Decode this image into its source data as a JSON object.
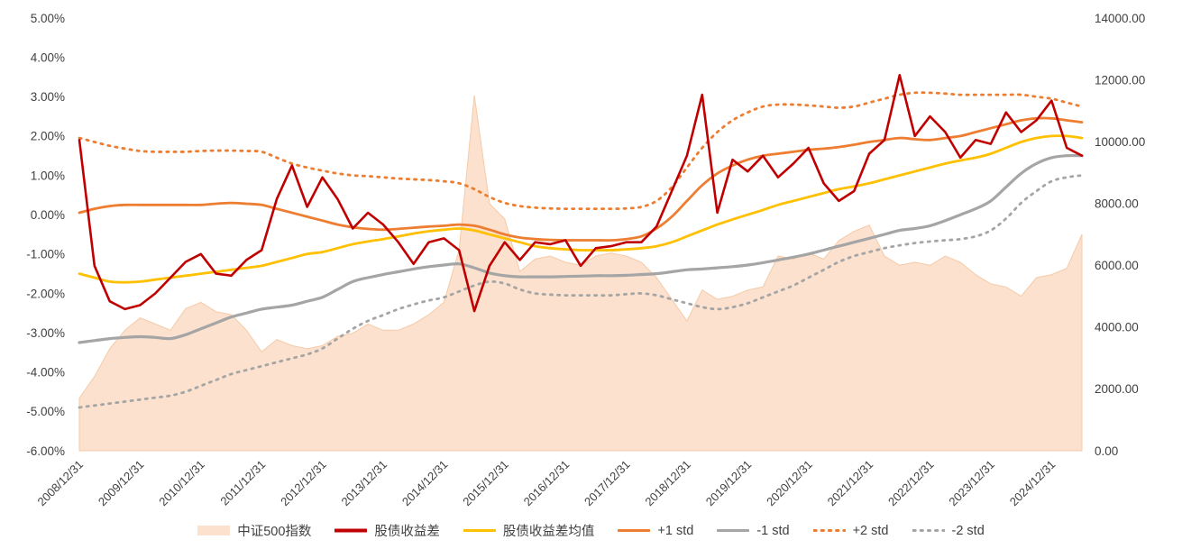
{
  "chart_data": {
    "type": "line",
    "title": "",
    "legend_position": "bottom",
    "grid": false,
    "axes": {
      "left": {
        "unit": "%",
        "min": -6,
        "max": 5,
        "tick_labels": [
          "5.00%",
          "4.00%",
          "3.00%",
          "2.00%",
          "1.00%",
          "0.00%",
          "-1.00%",
          "-2.00%",
          "-3.00%",
          "-4.00%",
          "-5.00%",
          "-6.00%"
        ],
        "tick_values": [
          5,
          4,
          3,
          2,
          1,
          0,
          -1,
          -2,
          -3,
          -4,
          -5,
          -6
        ]
      },
      "right": {
        "unit": "index points",
        "min": 0,
        "max": 14000,
        "tick_labels": [
          "14000.00",
          "12000.00",
          "10000.00",
          "8000.00",
          "6000.00",
          "4000.00",
          "2000.00",
          "0.00"
        ],
        "tick_values": [
          14000,
          12000,
          10000,
          8000,
          6000,
          4000,
          2000,
          0
        ]
      },
      "x": {
        "tick_labels": [
          "2008/12/31",
          "2009/12/31",
          "2010/12/31",
          "2011/12/31",
          "2012/12/31",
          "2013/12/31",
          "2014/12/31",
          "2015/12/31",
          "2016/12/31",
          "2017/12/31",
          "2018/12/31",
          "2019/12/31",
          "2020/12/31",
          "2021/12/31",
          "2022/12/31",
          "2023/12/31",
          "2024/12/31"
        ],
        "tick_values": [
          2009,
          2010,
          2011,
          2012,
          2013,
          2014,
          2015,
          2016,
          2017,
          2018,
          2019,
          2020,
          2021,
          2022,
          2023,
          2024,
          2025
        ]
      }
    },
    "x_years": [
      2009,
      2009.25,
      2009.5,
      2009.75,
      2010,
      2010.25,
      2010.5,
      2010.75,
      2011,
      2011.25,
      2011.5,
      2011.75,
      2012,
      2012.25,
      2012.5,
      2012.75,
      2013,
      2013.25,
      2013.5,
      2013.75,
      2014,
      2014.25,
      2014.5,
      2014.75,
      2015,
      2015.25,
      2015.5,
      2015.75,
      2016,
      2016.25,
      2016.5,
      2016.75,
      2017,
      2017.25,
      2017.5,
      2017.75,
      2018,
      2018.25,
      2018.5,
      2018.75,
      2019,
      2019.25,
      2019.5,
      2019.75,
      2020,
      2020.25,
      2020.5,
      2020.75,
      2021,
      2021.25,
      2021.5,
      2021.75,
      2022,
      2022.25,
      2022.5,
      2022.75,
      2023,
      2023.25,
      2023.5,
      2023.75,
      2024,
      2024.25,
      2024.5,
      2024.75,
      2025,
      2025.25,
      2025.5
    ],
    "series": [
      {
        "key": "csi500",
        "name": "中证500指数",
        "type": "area",
        "axis": "right",
        "color": "#FBE1CE",
        "edge": "#F5CBA8",
        "smooth": false,
        "values": [
          1700,
          2400,
          3300,
          3900,
          4300,
          4100,
          3900,
          4600,
          4800,
          4500,
          4400,
          3900,
          3200,
          3600,
          3400,
          3300,
          3400,
          3700,
          3800,
          4100,
          3900,
          3900,
          4100,
          4400,
          4800,
          6500,
          11500,
          8000,
          7500,
          5800,
          6200,
          6300,
          6100,
          6000,
          6300,
          6400,
          6300,
          6100,
          5600,
          4900,
          4200,
          5200,
          4900,
          5000,
          5200,
          5300,
          6300,
          6200,
          6400,
          6200,
          6800,
          7100,
          7300,
          6300,
          6000,
          6100,
          6000,
          6300,
          6100,
          5700,
          5400,
          5300,
          5000,
          5600,
          5700,
          5900,
          7000
        ]
      },
      {
        "key": "spread",
        "name": "股债收益差",
        "type": "line",
        "axis": "left",
        "color": "#C00000",
        "width": 2.6,
        "smooth": false,
        "values": [
          1.9,
          -1.3,
          -2.2,
          -2.4,
          -2.3,
          -2.0,
          -1.6,
          -1.2,
          -1.0,
          -1.5,
          -1.55,
          -1.15,
          -0.9,
          0.4,
          1.25,
          0.2,
          0.95,
          0.4,
          -0.35,
          0.05,
          -0.25,
          -0.7,
          -1.25,
          -0.7,
          -0.6,
          -0.9,
          -2.45,
          -1.3,
          -0.7,
          -1.15,
          -0.7,
          -0.75,
          -0.65,
          -1.3,
          -0.85,
          -0.8,
          -0.7,
          -0.7,
          -0.3,
          0.6,
          1.5,
          3.05,
          0.05,
          1.4,
          1.1,
          1.5,
          0.95,
          1.3,
          1.7,
          0.8,
          0.35,
          0.6,
          1.55,
          1.9,
          3.55,
          2.0,
          2.5,
          2.1,
          1.45,
          1.9,
          1.8,
          2.6,
          2.1,
          2.4,
          2.9,
          1.7,
          1.5
        ]
      },
      {
        "key": "spread-mean",
        "name": "股债收益差均值",
        "type": "line",
        "axis": "left",
        "color": "#FFC000",
        "width": 2.8,
        "smooth": true,
        "values": [
          -1.5,
          -1.6,
          -1.7,
          -1.72,
          -1.7,
          -1.65,
          -1.6,
          -1.55,
          -1.5,
          -1.45,
          -1.4,
          -1.35,
          -1.3,
          -1.2,
          -1.1,
          -1.0,
          -0.95,
          -0.85,
          -0.75,
          -0.68,
          -0.62,
          -0.55,
          -0.48,
          -0.42,
          -0.38,
          -0.35,
          -0.4,
          -0.5,
          -0.6,
          -0.7,
          -0.8,
          -0.85,
          -0.88,
          -0.9,
          -0.9,
          -0.9,
          -0.88,
          -0.85,
          -0.8,
          -0.7,
          -0.55,
          -0.4,
          -0.25,
          -0.12,
          0.0,
          0.12,
          0.25,
          0.35,
          0.45,
          0.55,
          0.65,
          0.72,
          0.8,
          0.9,
          1.0,
          1.1,
          1.2,
          1.3,
          1.38,
          1.45,
          1.55,
          1.7,
          1.85,
          1.95,
          2.0,
          2.0,
          1.95
        ]
      },
      {
        "key": "plus1std",
        "name": "+1 std",
        "type": "line",
        "axis": "left",
        "color": "#ED7D31",
        "width": 2.8,
        "smooth": true,
        "values": [
          0.05,
          0.15,
          0.22,
          0.25,
          0.25,
          0.25,
          0.25,
          0.25,
          0.25,
          0.28,
          0.3,
          0.28,
          0.25,
          0.15,
          0.05,
          -0.05,
          -0.15,
          -0.25,
          -0.32,
          -0.36,
          -0.38,
          -0.36,
          -0.33,
          -0.3,
          -0.28,
          -0.25,
          -0.28,
          -0.38,
          -0.5,
          -0.58,
          -0.62,
          -0.64,
          -0.65,
          -0.65,
          -0.65,
          -0.65,
          -0.62,
          -0.55,
          -0.35,
          -0.05,
          0.35,
          0.75,
          1.05,
          1.25,
          1.4,
          1.5,
          1.55,
          1.6,
          1.65,
          1.68,
          1.72,
          1.78,
          1.85,
          1.9,
          1.95,
          1.92,
          1.9,
          1.95,
          2.0,
          2.1,
          2.2,
          2.3,
          2.4,
          2.45,
          2.45,
          2.4,
          2.35
        ]
      },
      {
        "key": "minus1std",
        "name": "-1 std",
        "type": "line",
        "axis": "left",
        "color": "#A5A5A5",
        "width": 3.2,
        "smooth": true,
        "values": [
          -3.25,
          -3.2,
          -3.15,
          -3.12,
          -3.1,
          -3.12,
          -3.15,
          -3.05,
          -2.9,
          -2.75,
          -2.6,
          -2.5,
          -2.4,
          -2.35,
          -2.3,
          -2.2,
          -2.1,
          -1.9,
          -1.7,
          -1.6,
          -1.52,
          -1.45,
          -1.38,
          -1.32,
          -1.28,
          -1.25,
          -1.35,
          -1.48,
          -1.55,
          -1.58,
          -1.58,
          -1.58,
          -1.57,
          -1.56,
          -1.55,
          -1.55,
          -1.54,
          -1.52,
          -1.5,
          -1.45,
          -1.4,
          -1.38,
          -1.35,
          -1.32,
          -1.28,
          -1.22,
          -1.15,
          -1.08,
          -1.0,
          -0.9,
          -0.8,
          -0.7,
          -0.6,
          -0.5,
          -0.4,
          -0.35,
          -0.28,
          -0.15,
          0.0,
          0.15,
          0.35,
          0.7,
          1.05,
          1.3,
          1.45,
          1.5,
          1.5
        ]
      },
      {
        "key": "plus2std",
        "name": "+2 std",
        "type": "line",
        "axis": "left",
        "color": "#ED7D31",
        "width": 2.8,
        "dash": true,
        "smooth": true,
        "values": [
          1.95,
          1.85,
          1.75,
          1.68,
          1.62,
          1.6,
          1.6,
          1.6,
          1.62,
          1.63,
          1.63,
          1.62,
          1.6,
          1.45,
          1.3,
          1.2,
          1.12,
          1.05,
          1.0,
          0.98,
          0.95,
          0.92,
          0.9,
          0.88,
          0.85,
          0.8,
          0.65,
          0.45,
          0.3,
          0.22,
          0.18,
          0.16,
          0.15,
          0.15,
          0.15,
          0.15,
          0.16,
          0.2,
          0.35,
          0.7,
          1.2,
          1.7,
          2.1,
          2.4,
          2.6,
          2.75,
          2.8,
          2.8,
          2.78,
          2.75,
          2.72,
          2.75,
          2.85,
          2.95,
          3.05,
          3.1,
          3.1,
          3.08,
          3.05,
          3.05,
          3.05,
          3.05,
          3.05,
          3.0,
          2.95,
          2.85,
          2.75
        ]
      },
      {
        "key": "minus2std",
        "name": "-2 std",
        "type": "line",
        "axis": "left",
        "color": "#A5A5A5",
        "width": 2.8,
        "dash": true,
        "smooth": true,
        "values": [
          -4.9,
          -4.85,
          -4.8,
          -4.75,
          -4.7,
          -4.65,
          -4.6,
          -4.5,
          -4.35,
          -4.2,
          -4.05,
          -3.95,
          -3.85,
          -3.75,
          -3.65,
          -3.55,
          -3.4,
          -3.15,
          -2.9,
          -2.7,
          -2.55,
          -2.4,
          -2.28,
          -2.18,
          -2.1,
          -1.95,
          -1.8,
          -1.7,
          -1.75,
          -1.9,
          -2.0,
          -2.03,
          -2.05,
          -2.05,
          -2.05,
          -2.05,
          -2.02,
          -2.0,
          -2.05,
          -2.15,
          -2.25,
          -2.35,
          -2.4,
          -2.35,
          -2.25,
          -2.1,
          -1.95,
          -1.8,
          -1.6,
          -1.4,
          -1.2,
          -1.05,
          -0.95,
          -0.85,
          -0.78,
          -0.72,
          -0.68,
          -0.65,
          -0.62,
          -0.55,
          -0.4,
          -0.1,
          0.3,
          0.6,
          0.85,
          0.95,
          1.0
        ]
      }
    ]
  }
}
